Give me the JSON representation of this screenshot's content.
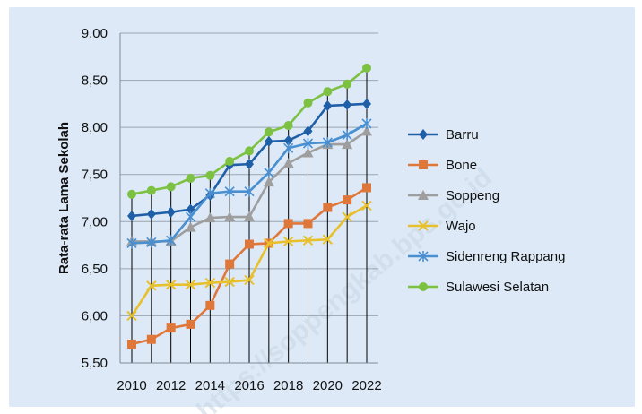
{
  "chart_data": {
    "type": "line",
    "title": "",
    "xlabel": "",
    "ylabel": "Rata-rata Lama Sekolah",
    "x": [
      2010,
      2011,
      2012,
      2013,
      2014,
      2015,
      2016,
      2017,
      2018,
      2019,
      2020,
      2021,
      2022
    ],
    "x_tick_labels": [
      "2010",
      "2012",
      "2014",
      "2016",
      "2018",
      "2020",
      "2022"
    ],
    "y_tick_labels": [
      "5,50",
      "6,00",
      "6,50",
      "7,00",
      "7,50",
      "8,00",
      "8,50",
      "9,00"
    ],
    "ylim": [
      5.5,
      9.0
    ],
    "y_ticks": [
      5.5,
      6.0,
      6.5,
      7.0,
      7.5,
      8.0,
      8.5,
      9.0
    ],
    "grid": "horizontal",
    "drop_lines": true,
    "legend_position": "right",
    "series": [
      {
        "name": "Barru",
        "color": "#1f5fa8",
        "marker": "diamond",
        "values": [
          7.06,
          7.08,
          7.1,
          7.13,
          7.28,
          7.6,
          7.61,
          7.85,
          7.86,
          7.96,
          8.23,
          8.24,
          8.25
        ]
      },
      {
        "name": "Bone",
        "color": "#e0773a",
        "marker": "square",
        "values": [
          5.7,
          5.75,
          5.87,
          5.91,
          6.11,
          6.55,
          6.76,
          6.77,
          6.98,
          6.98,
          7.15,
          7.23,
          7.36
        ]
      },
      {
        "name": "Soppeng",
        "color": "#9e9e9e",
        "marker": "triangle",
        "values": [
          6.79,
          6.79,
          6.79,
          6.94,
          7.04,
          7.05,
          7.05,
          7.42,
          7.62,
          7.73,
          7.82,
          7.82,
          7.96
        ]
      },
      {
        "name": "Wajo",
        "color": "#e8c02c",
        "marker": "x",
        "values": [
          6.0,
          6.32,
          6.33,
          6.33,
          6.35,
          6.36,
          6.38,
          6.77,
          6.79,
          6.8,
          6.81,
          7.05,
          7.17
        ]
      },
      {
        "name": "Sidenreng Rappang",
        "color": "#4a8fd0",
        "marker": "asterisk",
        "values": [
          6.77,
          6.78,
          6.8,
          7.05,
          7.3,
          7.32,
          7.32,
          7.52,
          7.78,
          7.83,
          7.84,
          7.92,
          8.04
        ]
      },
      {
        "name": "Sulawesi Selatan",
        "color": "#7cc142",
        "marker": "circle",
        "values": [
          7.29,
          7.33,
          7.37,
          7.46,
          7.49,
          7.64,
          7.75,
          7.95,
          8.02,
          8.26,
          8.38,
          8.46,
          8.63
        ]
      }
    ],
    "watermark": "https://soppengkab.bps.go.id"
  }
}
